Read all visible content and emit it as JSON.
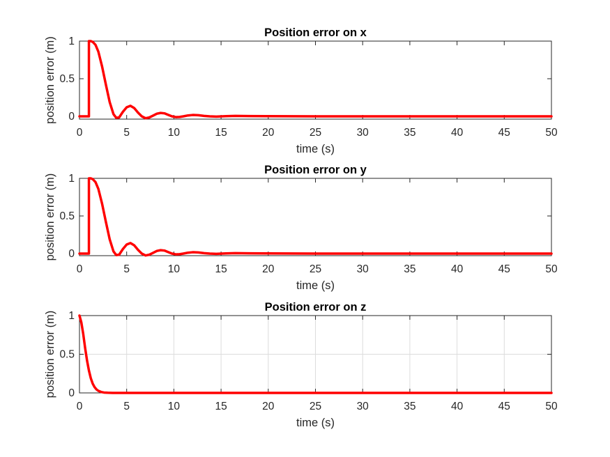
{
  "colors": {
    "line": "#ff0000",
    "axes": "#262626",
    "grid": "#dcdcdc",
    "background": "#ffffff"
  },
  "chart_data": [
    {
      "type": "line",
      "title": "Position error on x",
      "xlabel": "time (s)",
      "ylabel": "position error (m)",
      "xlim": [
        0,
        50
      ],
      "ylim": [
        -0.03,
        1
      ],
      "xticks": [
        0,
        5,
        10,
        15,
        20,
        25,
        30,
        35,
        40,
        45,
        50
      ],
      "yticks": [
        0,
        0.5,
        1
      ],
      "ytick_labels": [
        "0",
        "0.5",
        "1"
      ],
      "grid": false,
      "series": [
        {
          "x": [
            0,
            1,
            1,
            1.2,
            1.4,
            1.7,
            2.0,
            2.4,
            2.8,
            3.2,
            3.6,
            3.9,
            4.2,
            4.6,
            5.0,
            5.4,
            5.8,
            6.2,
            6.6,
            7.0,
            7.4,
            7.8,
            8.2,
            8.6,
            9.0,
            9.4,
            9.8,
            10.2,
            10.6,
            11.0,
            11.5,
            12.0,
            12.6,
            13.2,
            13.8,
            14.5,
            15.5,
            16.5,
            18,
            20,
            25,
            30,
            40,
            50
          ],
          "y": [
            0,
            0,
            1,
            1.0,
            0.99,
            0.95,
            0.86,
            0.66,
            0.42,
            0.19,
            0.03,
            -0.02,
            -0.015,
            0.06,
            0.12,
            0.14,
            0.11,
            0.05,
            0.0,
            -0.025,
            -0.015,
            0.01,
            0.035,
            0.045,
            0.04,
            0.02,
            0.0,
            -0.01,
            -0.008,
            0.0,
            0.012,
            0.018,
            0.015,
            0.006,
            0.0,
            -0.003,
            0.002,
            0.006,
            0.004,
            0.002,
            0.0,
            0.0,
            0.0,
            0.0
          ]
        }
      ]
    },
    {
      "type": "line",
      "title": "Position error on y",
      "xlabel": "time (s)",
      "ylabel": "position error (m)",
      "xlim": [
        0,
        50
      ],
      "ylim": [
        -0.03,
        1
      ],
      "xticks": [
        0,
        5,
        10,
        15,
        20,
        25,
        30,
        35,
        40,
        45,
        50
      ],
      "yticks": [
        0,
        0.5,
        1
      ],
      "ytick_labels": [
        "0",
        "0.5",
        "1"
      ],
      "grid": false,
      "series": [
        {
          "x": [
            0,
            1,
            1,
            1.2,
            1.4,
            1.7,
            2.0,
            2.4,
            2.8,
            3.2,
            3.6,
            3.9,
            4.2,
            4.6,
            5.0,
            5.4,
            5.8,
            6.2,
            6.6,
            7.0,
            7.4,
            7.8,
            8.2,
            8.6,
            9.0,
            9.4,
            9.8,
            10.2,
            10.6,
            11.0,
            11.5,
            12.0,
            12.6,
            13.2,
            13.8,
            14.5,
            15.5,
            16.5,
            18,
            20,
            25,
            30,
            40,
            50
          ],
          "y": [
            0,
            0,
            1,
            1.0,
            0.99,
            0.95,
            0.86,
            0.66,
            0.42,
            0.19,
            0.03,
            -0.02,
            -0.015,
            0.06,
            0.12,
            0.14,
            0.11,
            0.05,
            0.0,
            -0.025,
            -0.015,
            0.01,
            0.035,
            0.045,
            0.04,
            0.02,
            0.0,
            -0.01,
            -0.008,
            0.0,
            0.012,
            0.018,
            0.015,
            0.006,
            0.0,
            -0.003,
            0.002,
            0.006,
            0.004,
            0.002,
            0.0,
            0.0,
            0.0,
            0.0
          ]
        }
      ]
    },
    {
      "type": "line",
      "title": "Position error on z",
      "xlabel": "time (s)",
      "ylabel": "position error (m)",
      "xlim": [
        0,
        50
      ],
      "ylim": [
        0,
        1
      ],
      "xticks": [
        0,
        5,
        10,
        15,
        20,
        25,
        30,
        35,
        40,
        45,
        50
      ],
      "yticks": [
        0,
        0.5,
        1
      ],
      "ytick_labels": [
        "0",
        "0.5",
        "1"
      ],
      "grid": true,
      "series": [
        {
          "x": [
            0,
            0.2,
            0.4,
            0.6,
            0.8,
            1.0,
            1.2,
            1.4,
            1.6,
            1.8,
            2.0,
            2.3,
            2.6,
            3.0,
            3.5,
            4.0,
            5,
            6,
            10,
            20,
            30,
            40,
            50
          ],
          "y": [
            1.0,
            0.91,
            0.76,
            0.58,
            0.42,
            0.29,
            0.19,
            0.12,
            0.075,
            0.045,
            0.027,
            0.012,
            0.005,
            0.002,
            0.0,
            0.0,
            0.0,
            0.0,
            0.0,
            0.0,
            0.0,
            0.0,
            0.0
          ]
        }
      ]
    }
  ]
}
